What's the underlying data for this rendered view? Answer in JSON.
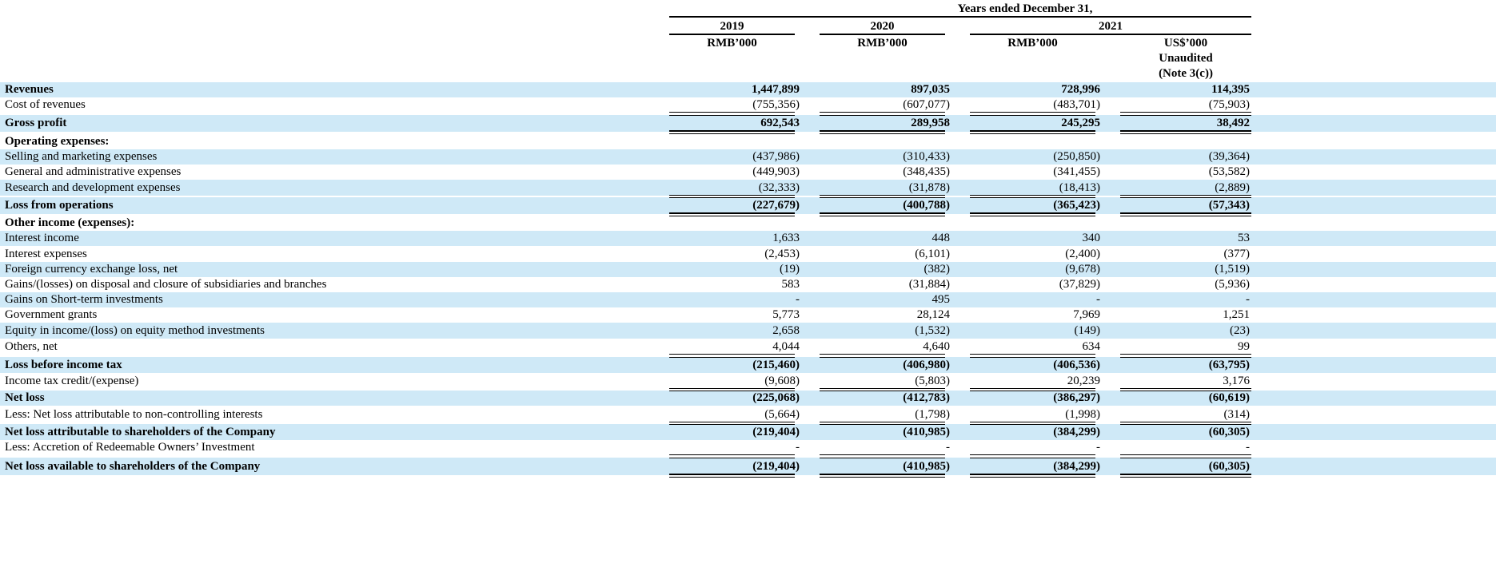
{
  "header": {
    "group_title": "Years ended December 31,",
    "years": [
      "2019",
      "2020",
      "2021"
    ],
    "currency": [
      "RMB’000",
      "RMB’000",
      "RMB’000"
    ],
    "usd_header": [
      "US$’000",
      "Unaudited",
      "(Note 3(c))"
    ]
  },
  "rows": [
    {
      "label": "Revenues",
      "values": [
        "1,447,899",
        "897,035",
        "728,996",
        "114,395"
      ]
    },
    {
      "label": "Cost of revenues",
      "values": [
        "(755,356)",
        "(607,077)",
        "(483,701)",
        "(75,903)"
      ]
    },
    {
      "label": "Gross profit",
      "values": [
        "692,543",
        "289,958",
        "245,295",
        "38,492"
      ]
    },
    {
      "label": "Operating expenses:",
      "values": [
        "",
        "",
        "",
        ""
      ]
    },
    {
      "label": "Selling and marketing expenses",
      "values": [
        "(437,986)",
        "(310,433)",
        "(250,850)",
        "(39,364)"
      ]
    },
    {
      "label": "General and administrative expenses",
      "values": [
        "(449,903)",
        "(348,435)",
        "(341,455)",
        "(53,582)"
      ]
    },
    {
      "label": "Research and development expenses",
      "values": [
        "(32,333)",
        "(31,878)",
        "(18,413)",
        "(2,889)"
      ]
    },
    {
      "label": "Loss from operations",
      "values": [
        "(227,679)",
        "(400,788)",
        "(365,423)",
        "(57,343)"
      ]
    },
    {
      "label": "Other income (expenses):",
      "values": [
        "",
        "",
        "",
        ""
      ]
    },
    {
      "label": "Interest income",
      "values": [
        "1,633",
        "448",
        "340",
        "53"
      ]
    },
    {
      "label": "Interest expenses",
      "values": [
        "(2,453)",
        "(6,101)",
        "(2,400)",
        "(377)"
      ]
    },
    {
      "label": "Foreign currency exchange loss, net",
      "values": [
        "(19)",
        "(382)",
        "(9,678)",
        "(1,519)"
      ]
    },
    {
      "label": "Gains/(losses) on disposal and closure of subsidiaries and branches",
      "values": [
        "583",
        "(31,884)",
        "(37,829)",
        "(5,936)"
      ]
    },
    {
      "label": "Gains on Short-term investments",
      "values": [
        "-",
        "495",
        "-",
        "-"
      ]
    },
    {
      "label": "Government grants",
      "values": [
        "5,773",
        "28,124",
        "7,969",
        "1,251"
      ]
    },
    {
      "label": "Equity in income/(loss) on equity method investments",
      "values": [
        "2,658",
        "(1,532)",
        "(149)",
        "(23)"
      ]
    },
    {
      "label": "Others, net",
      "values": [
        "4,044",
        "4,640",
        "634",
        "99"
      ]
    },
    {
      "label": "Loss before income tax",
      "values": [
        "(215,460)",
        "(406,980)",
        "(406,536)",
        "(63,795)"
      ]
    },
    {
      "label": "Income tax credit/(expense)",
      "values": [
        "(9,608)",
        "(5,803)",
        "20,239",
        "3,176"
      ]
    },
    {
      "label": "Net loss",
      "values": [
        "(225,068)",
        "(412,783)",
        "(386,297)",
        "(60,619)"
      ]
    },
    {
      "label": "Less: Net loss attributable to non-controlling interests",
      "values": [
        "(5,664)",
        "(1,798)",
        "(1,998)",
        "(314)"
      ]
    },
    {
      "label": "Net loss attributable to shareholders of the Company",
      "values": [
        "(219,404)",
        "(410,985)",
        "(384,299)",
        "(60,305)"
      ]
    },
    {
      "label": "Less: Accretion of Redeemable Owners’ Investment",
      "values": [
        "-",
        "-",
        "-",
        "-"
      ]
    },
    {
      "label": "Net loss available to shareholders of the Company",
      "values": [
        "(219,404)",
        "(410,985)",
        "(384,299)",
        "(60,305)"
      ]
    }
  ]
}
